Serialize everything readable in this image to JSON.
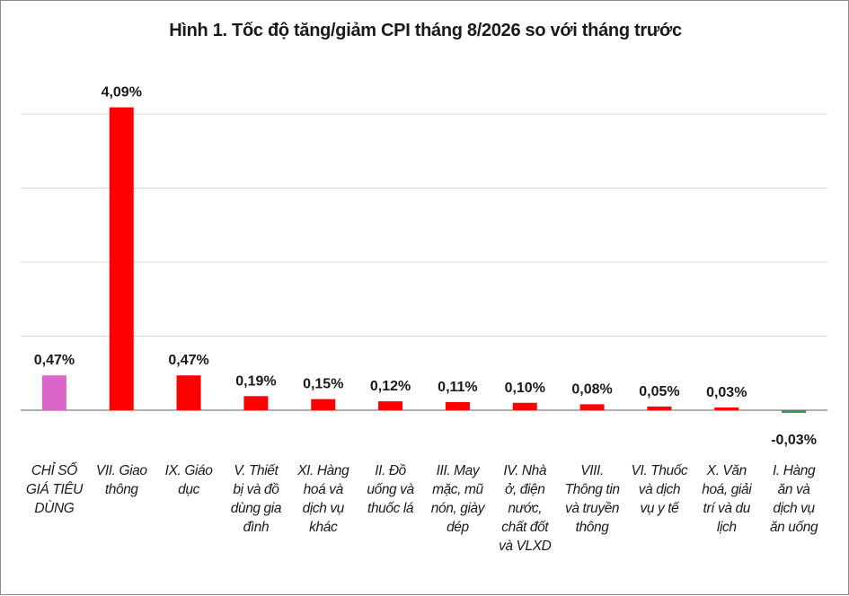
{
  "chart_data": {
    "type": "bar",
    "title": "Hình 1. Tốc độ tăng/giảm CPI tháng 8/2026 so với tháng trước",
    "xlabel": "",
    "ylabel": "",
    "ylim": [
      -0.5,
      4.5
    ],
    "grid": true,
    "legend": "none",
    "categories": [
      "CHỈ SỐ GIÁ TIÊU DÙNG",
      "VII. Giao thông",
      "IX. Giáo dục",
      "V. Thiết bị và đồ dùng gia đình",
      "XI. Hàng hoá và dịch vụ khác",
      "II. Đồ uống và thuốc lá",
      "III. May mặc, mũ nón, giày dép",
      "IV. Nhà ở, điện nước, chất đốt và VLXD",
      "VIII. Thông tin và truyền thông",
      "VI. Thuốc và dịch vụ y tế",
      "X. Văn hoá, giải trí và du lịch",
      "I. Hàng ăn và dịch vụ ăn uống"
    ],
    "category_lines": [
      [
        "CHỈ SỐ",
        "GIÁ TIÊU",
        "DÙNG"
      ],
      [
        "VII. Giao",
        "thông"
      ],
      [
        "IX. Giáo",
        "dục"
      ],
      [
        "V. Thiết",
        "bị và đồ",
        "dùng gia",
        "đình"
      ],
      [
        "XI. Hàng",
        "hoá và",
        "dịch vụ",
        "khác"
      ],
      [
        "II. Đồ",
        "uống và",
        "thuốc lá"
      ],
      [
        "III. May",
        "mặc, mũ",
        "nón, giày",
        "dép"
      ],
      [
        "IV. Nhà",
        "ở, điện",
        "nước,",
        "chất đốt",
        "và VLXD"
      ],
      [
        "VIII.",
        "Thông tin",
        "và truyền",
        "thông"
      ],
      [
        "VI. Thuốc",
        "và dịch",
        "vụ y tế"
      ],
      [
        "X. Văn",
        "hoá, giải",
        "trí và du",
        "lịch"
      ],
      [
        "I. Hàng",
        "ăn và",
        "dịch vụ",
        "ăn uống"
      ]
    ],
    "values": [
      0.47,
      4.09,
      0.47,
      0.19,
      0.15,
      0.12,
      0.11,
      0.1,
      0.08,
      0.05,
      0.03,
      -0.03
    ],
    "data_labels": [
      "0,47%",
      "4,09%",
      "0,47%",
      "0,19%",
      "0,15%",
      "0,12%",
      "0,11%",
      "0,10%",
      "0,08%",
      "0,05%",
      "0,03%",
      "-0,03%"
    ],
    "colors": {
      "total": "#d966c8",
      "increase": "#ff0000",
      "decrease": "#2e9e5a",
      "grid": "#d9d9d9",
      "axis": "#7f7f7f"
    }
  }
}
